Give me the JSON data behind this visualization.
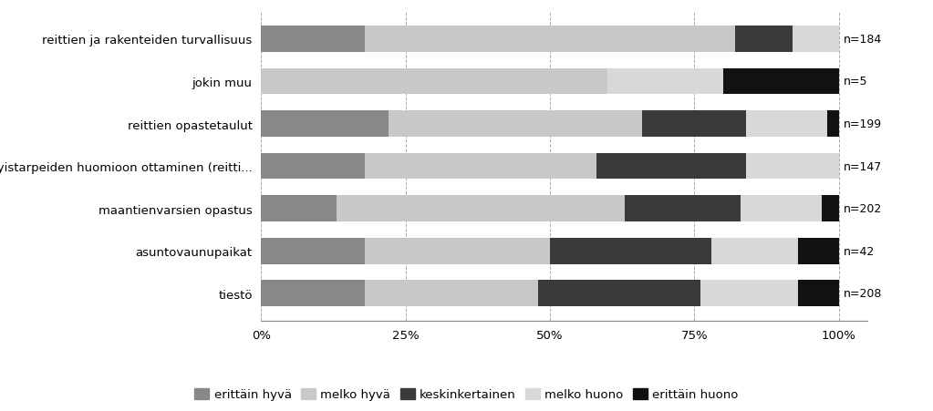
{
  "categories": [
    "reittien ja rakenteiden turvallisuus",
    "jokin muu",
    "reittien opastetaulut",
    "erityistarpeiden huomioon ottaminen (reitti...",
    "maantienvarsien opastus",
    "asuntovaunupaikat",
    "tiestö"
  ],
  "n_labels": [
    "n=184",
    "n=5",
    "n=199",
    "n=147",
    "n=202",
    "n=42",
    "n=208"
  ],
  "series": {
    "erittäin hyvä": [
      18,
      0,
      22,
      18,
      13,
      18,
      18
    ],
    "melko hyvä": [
      64,
      60,
      44,
      40,
      50,
      32,
      30
    ],
    "keskinkertainen": [
      10,
      0,
      18,
      26,
      20,
      28,
      28
    ],
    "melko huono": [
      8,
      20,
      14,
      16,
      14,
      15,
      17
    ],
    "erittäin huono": [
      0,
      20,
      2,
      0,
      3,
      7,
      7
    ]
  },
  "colors": {
    "erittäin hyvä": "#888888",
    "melko hyvä": "#c8c8c8",
    "keskinkertainen": "#3a3a3a",
    "melko huono": "#d8d8d8",
    "erittäin huono": "#111111"
  },
  "legend_order": [
    "erittäin hyvä",
    "melko hyvä",
    "keskinkertainen",
    "melko huono",
    "erittäin huono"
  ],
  "xlim": [
    0,
    105
  ],
  "xticks": [
    0,
    25,
    50,
    75,
    100
  ],
  "xticklabels": [
    "0%",
    "25%",
    "50%",
    "75%",
    "100%"
  ],
  "background_color": "#ffffff",
  "bar_height": 0.62,
  "fontsize_labels": 9.5,
  "fontsize_ticks": 9.5,
  "fontsize_legend": 9.5,
  "fontsize_n": 9
}
